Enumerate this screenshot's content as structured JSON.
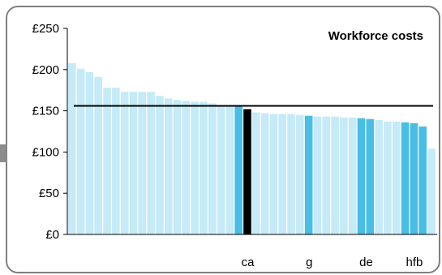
{
  "chart_data": {
    "type": "bar",
    "title": "Workforce costs",
    "ylim": [
      0,
      250
    ],
    "yticks": [
      0,
      50,
      100,
      150,
      200,
      250
    ],
    "ytick_labels": [
      "£0",
      "£50",
      "£100",
      "£150",
      "£200",
      "£250"
    ],
    "reference_line": 156,
    "grid": false,
    "values": [
      208,
      201,
      197,
      191,
      178,
      178,
      173,
      173,
      173,
      173,
      168,
      165,
      163,
      162,
      161,
      161,
      159,
      157,
      156,
      155,
      152,
      148,
      147,
      146,
      146,
      146,
      145,
      144,
      143,
      143,
      143,
      142,
      142,
      141,
      140,
      139,
      137,
      137,
      136,
      135,
      131,
      104
    ],
    "highlight": [
      "light",
      "light",
      "light",
      "light",
      "light",
      "light",
      "light",
      "light",
      "light",
      "light",
      "light",
      "light",
      "light",
      "light",
      "light",
      "light",
      "light",
      "light",
      "light",
      "medium",
      "black",
      "light",
      "light",
      "light",
      "light",
      "light",
      "light",
      "medium",
      "light",
      "light",
      "light",
      "light",
      "light",
      "medium",
      "medium",
      "light",
      "light",
      "light",
      "medium",
      "medium",
      "medium",
      "light"
    ],
    "category_labels": [
      {
        "text": "ca",
        "index": 20
      },
      {
        "text": "g",
        "index": 27
      },
      {
        "text": "de",
        "index": 33.5
      },
      {
        "text": "hfb",
        "index": 39
      }
    ],
    "colors": {
      "light": "#c5eaf8",
      "medium": "#48bde6",
      "black": "#000000",
      "reference_line": "#000000",
      "frame": "#7f7f7f"
    }
  }
}
